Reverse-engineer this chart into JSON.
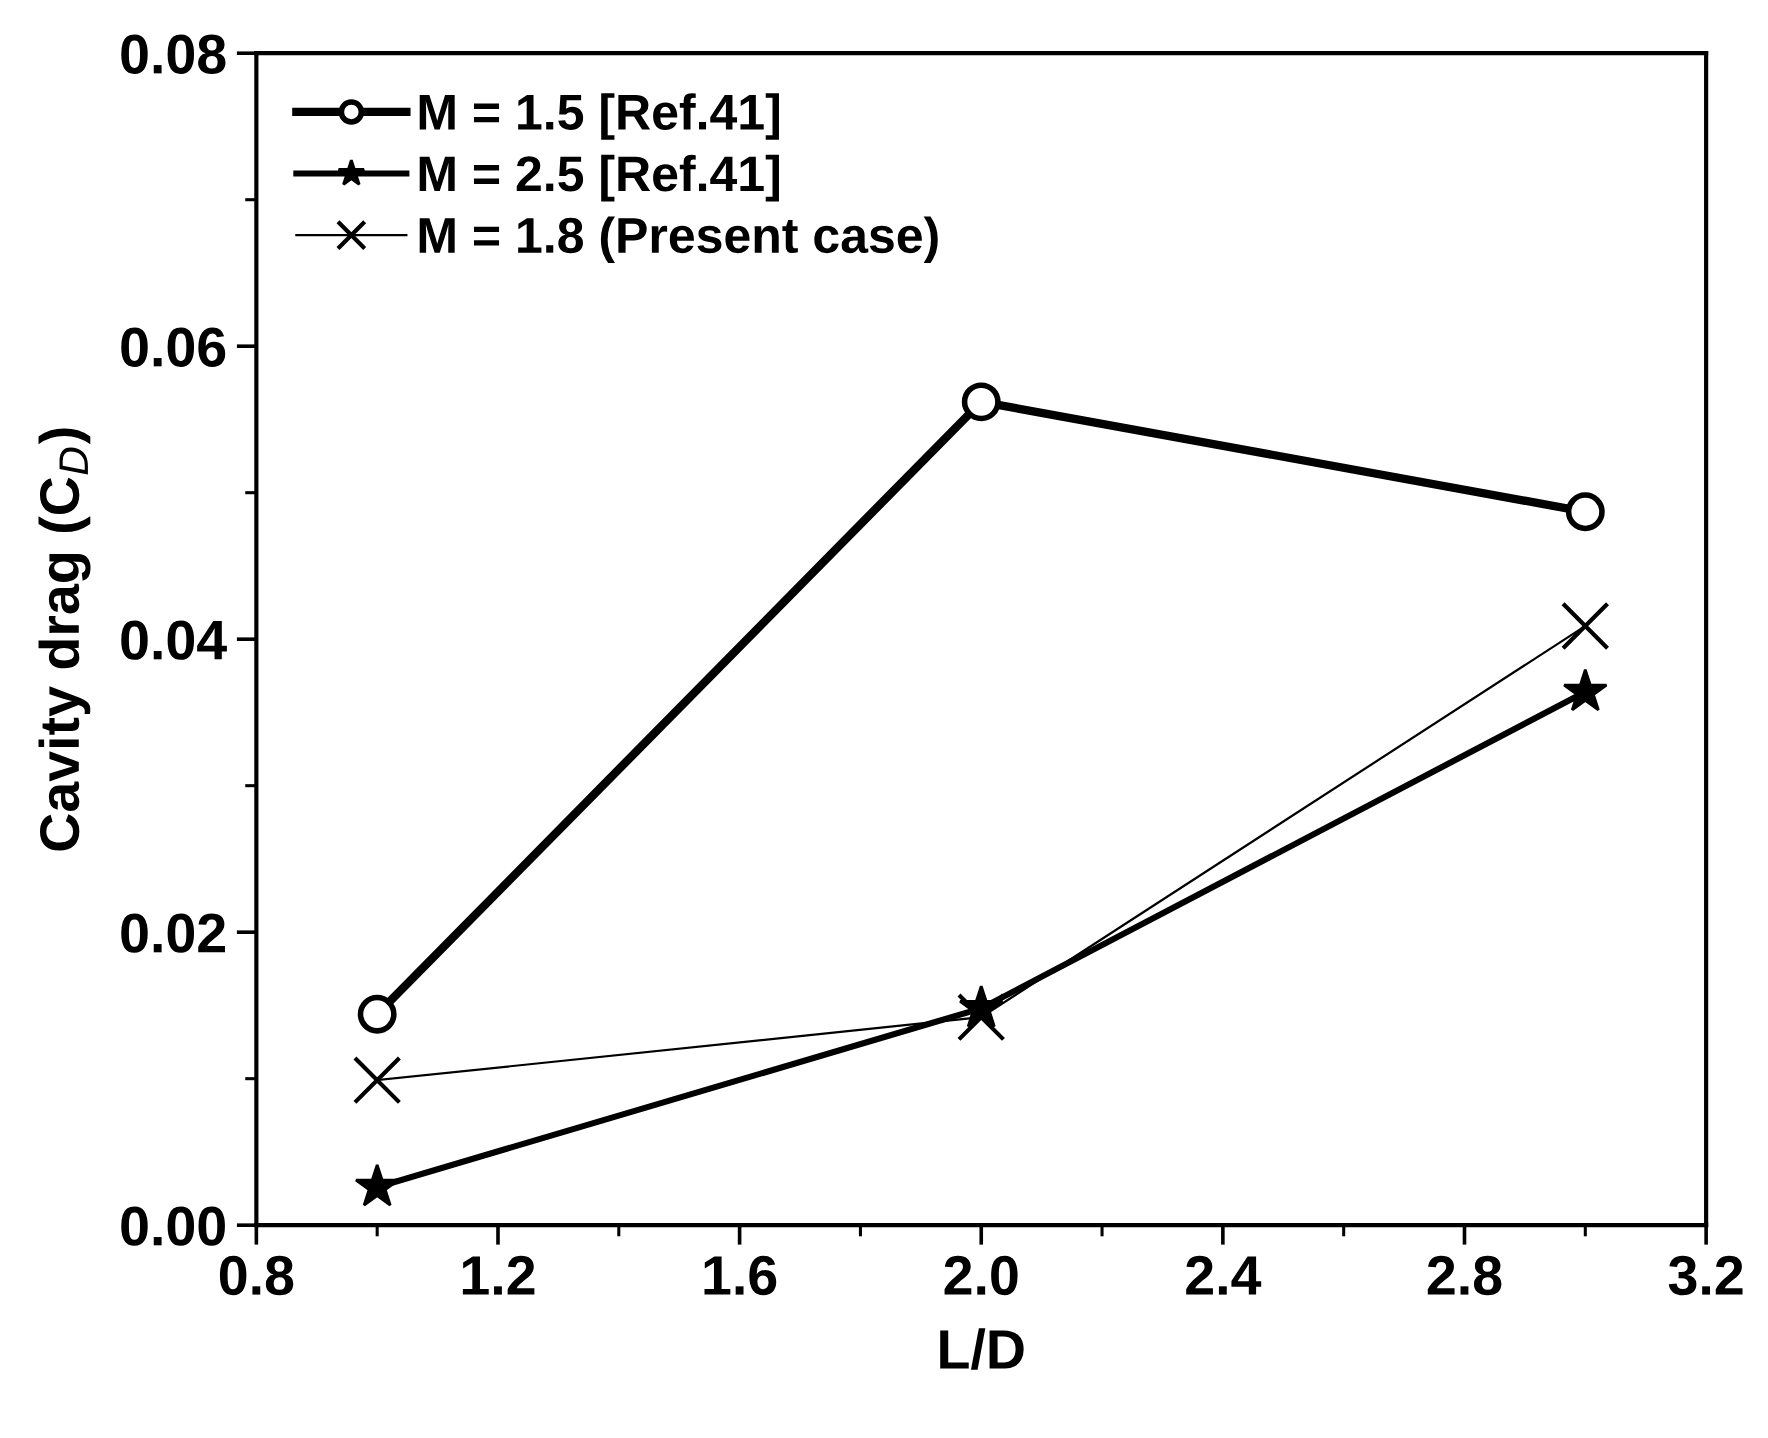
{
  "chart_data": {
    "type": "line",
    "xlabel": "L/D",
    "ylabel": "Cavity drag (C$_{D}$)",
    "x": [
      1.0,
      2.0,
      3.0
    ],
    "series": [
      {
        "name": "M = 1.5 [Ref.41]",
        "color": "#000000",
        "values": [
          0.0144,
          0.0562,
          0.0487
        ],
        "marker": "circle"
      },
      {
        "name": "M = 2.5 [Ref.41]",
        "color": "#000000",
        "values": [
          0.0026,
          0.0148,
          0.0364
        ],
        "marker": "star"
      },
      {
        "name": "M = 1.8 (Present case)",
        "color": "#000000",
        "values": [
          0.0099,
          0.0142,
          0.0409
        ],
        "marker": "cross"
      }
    ],
    "xlim": [
      0.8,
      3.2
    ],
    "xticks": [
      0.8,
      1.2,
      1.6,
      {
        "value": 2,
        "label": "2.0"
      },
      2.4,
      2.8,
      3.2
    ],
    "ylim": [
      0.0,
      0.08
    ],
    "yticks": [
      {
        "value": 0.0,
        "label": "0.00"
      },
      {
        "value": 0.02,
        "label": "0.02"
      },
      {
        "value": 0.04,
        "label": "0.04"
      },
      {
        "value": 0.06,
        "label": "0.06"
      },
      {
        "value": 0.08,
        "label": "0.08"
      }
    ],
    "grid": false,
    "legend": "top left",
    "line_style": "solid"
  }
}
